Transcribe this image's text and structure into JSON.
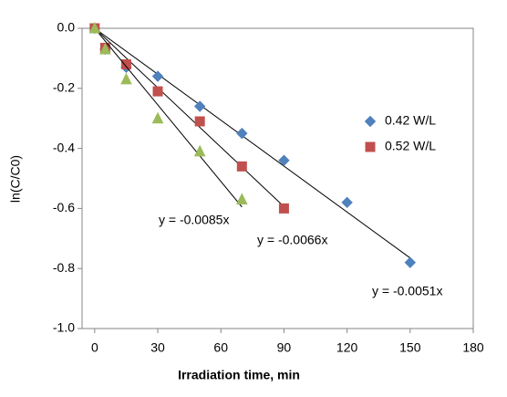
{
  "chart_data": {
    "type": "scatter",
    "x_label": "Irradiation time, min",
    "y_label": "ln(C/C0)",
    "xlim": [
      -6,
      180
    ],
    "xticks": [
      0,
      30,
      60,
      90,
      120,
      150,
      180
    ],
    "ylim": [
      -1.0,
      0.0
    ],
    "yticks": [
      {
        "value": -1.0,
        "label": "-1.0"
      },
      -0.8,
      -0.6,
      -0.4,
      -0.2,
      {
        "value": 0.0,
        "label": "0.0"
      }
    ],
    "series": [
      {
        "name": "0.42 W/L",
        "color": "#4f81bd",
        "marker": "diamond",
        "x": [
          0,
          5,
          15,
          30,
          50,
          70,
          90,
          120,
          150
        ],
        "values": [
          0,
          -0.07,
          -0.13,
          -0.16,
          -0.26,
          -0.35,
          -0.44,
          -0.58,
          -0.78
        ],
        "slope": -0.0051,
        "trendline_label": "y = -0.0051x"
      },
      {
        "name": "0.52 W/L",
        "color": "#c0504d",
        "marker": "square",
        "x": [
          0,
          5,
          15,
          30,
          50,
          70,
          90
        ],
        "values": [
          0,
          -0.065,
          -0.12,
          -0.21,
          -0.31,
          -0.46,
          -0.6
        ],
        "slope": -0.0066,
        "trendline_label": "y = -0.0066x"
      },
      {
        "color": "#9bbb59",
        "marker": "triangle",
        "x": [
          0,
          5,
          15,
          30,
          50,
          70
        ],
        "values": [
          0,
          -0.07,
          -0.17,
          -0.3,
          -0.41,
          -0.57
        ],
        "slope": -0.0085,
        "trendline_label": "y = -0.0085x"
      }
    ]
  }
}
